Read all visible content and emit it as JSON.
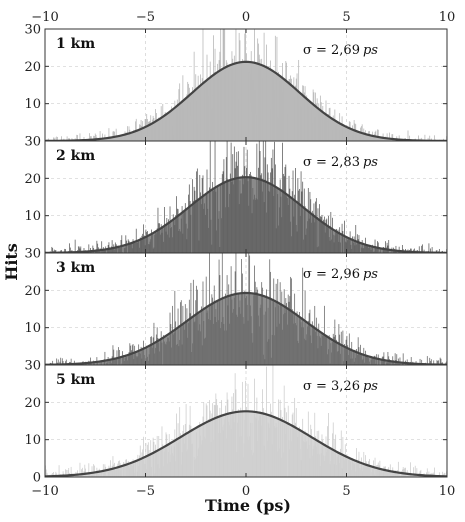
{
  "chart_data": {
    "type": "bar",
    "xlabel": "Time (ps)",
    "ylabel": "Hits",
    "xlim": [
      -10,
      10
    ],
    "ylim": [
      0,
      30
    ],
    "x_ticks": [
      -10,
      -5,
      0,
      5,
      10
    ],
    "y_ticks": [
      0,
      10,
      20,
      30
    ],
    "grid": true,
    "bin_width_ps": 0.04,
    "panels": [
      {
        "label": "1 km",
        "sigma_label": "σ = 2,69",
        "sigma_unit": "ps",
        "sigma": 2.69,
        "peak": 21.2,
        "spread": 0.28,
        "hist_color": "#b9b9b9",
        "fill_color": "#b9b9b9"
      },
      {
        "label": "2 km",
        "sigma_label": "σ = 2,83",
        "sigma_unit": "ps",
        "sigma": 2.83,
        "peak": 20.3,
        "spread": 0.3,
        "hist_color": "#636363",
        "fill_color": "#8a8a8a"
      },
      {
        "label": "3 km",
        "sigma_label": "σ = 2,96",
        "sigma_unit": "ps",
        "sigma": 2.96,
        "peak": 19.3,
        "spread": 0.3,
        "hist_color": "#6d6d6d",
        "fill_color": "#8f8f8f"
      },
      {
        "label": "5 km",
        "sigma_label": "σ = 3,26",
        "sigma_unit": "ps",
        "sigma": 3.26,
        "peak": 17.6,
        "spread": 0.3,
        "hist_color": "#cfcfcf",
        "fill_color": "#d6d6d6"
      }
    ]
  }
}
